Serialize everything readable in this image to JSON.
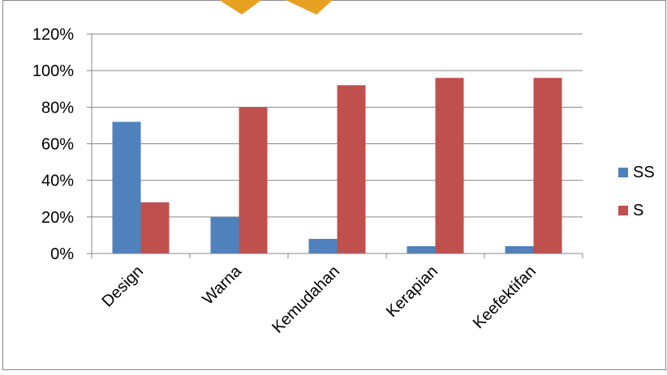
{
  "chart_data": {
    "type": "bar",
    "categories": [
      "Design",
      "Warna",
      "Kemudahan",
      "Kerapian",
      "Keefektifan"
    ],
    "series": [
      {
        "name": "SS",
        "color": "#4F81BD",
        "values": [
          72,
          20,
          8,
          4,
          4
        ]
      },
      {
        "name": "S",
        "color": "#C0504D",
        "values": [
          28,
          80,
          92,
          96,
          96
        ]
      }
    ],
    "ylim": [
      0,
      120
    ],
    "yticks": [
      {
        "value": 0,
        "label": "0%"
      },
      {
        "value": 20,
        "label": "20%"
      },
      {
        "value": 40,
        "label": "40%"
      },
      {
        "value": 60,
        "label": "60%"
      },
      {
        "value": 80,
        "label": "80%"
      },
      {
        "value": 100,
        "label": "100%"
      },
      {
        "value": 120,
        "label": "120%"
      }
    ],
    "grid": true,
    "legend": "right",
    "title": "",
    "xlabel": "",
    "ylabel": ""
  },
  "decoration": {
    "watermark_color": "#E8A020"
  }
}
